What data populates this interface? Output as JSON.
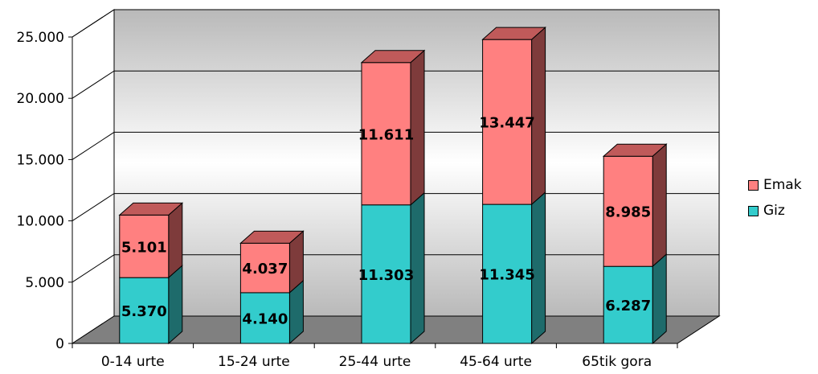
{
  "chart_data": {
    "type": "bar",
    "stacked": true,
    "three_d": true,
    "categories": [
      "0-14 urte",
      "15-24 urte",
      "25-44 urte",
      "45-64 urte",
      "65tik gora"
    ],
    "series": [
      {
        "name": "Giz",
        "values": [
          5370,
          4140,
          11303,
          11345,
          6287
        ],
        "labels": [
          "5.370",
          "4.140",
          "11.303",
          "11.345",
          "6.287"
        ],
        "color": "#33CCCC",
        "side_color": "#1E6B6B",
        "top_color": "#2AA9A9"
      },
      {
        "name": "Emak",
        "values": [
          5101,
          4037,
          11611,
          13447,
          8985
        ],
        "labels": [
          "5.101",
          "4.037",
          "11.611",
          "13.447",
          "8.985"
        ],
        "color": "#FF8080",
        "side_color": "#7E3B3B",
        "top_color": "#C05A5A"
      }
    ],
    "ylim": [
      0,
      25000
    ],
    "yticks": [
      0,
      5000,
      10000,
      15000,
      20000,
      25000
    ],
    "ytick_labels": [
      "0",
      "5.000",
      "10.000",
      "15.000",
      "20.000",
      "25.000"
    ],
    "grid": true,
    "legend_position": "right"
  },
  "legend": {
    "items": [
      {
        "label": "Emak",
        "color": "#FF8080"
      },
      {
        "label": "Giz",
        "color": "#33CCCC"
      }
    ]
  }
}
